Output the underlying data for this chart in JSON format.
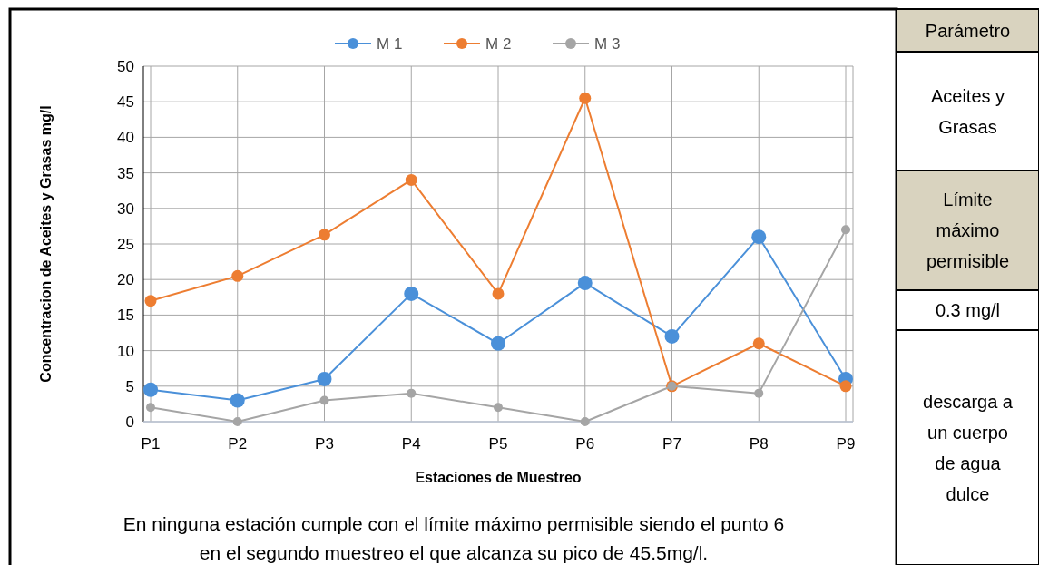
{
  "chart_data": {
    "type": "line",
    "xlabel": "Estaciones de Muestreo",
    "ylabel": "Concentracion de Aceites y Grasas mg/l",
    "categories": [
      "P1",
      "P2",
      "P3",
      "P4",
      "P5",
      "P6",
      "P7",
      "P8",
      "P9"
    ],
    "series": [
      {
        "name": "M 1",
        "color": "#4a90d9",
        "values": [
          4.5,
          3,
          6,
          18,
          11,
          19.5,
          12,
          26,
          6
        ]
      },
      {
        "name": "M 2",
        "color": "#ed7d31",
        "values": [
          17,
          20.5,
          26.3,
          34,
          18,
          45.5,
          5,
          11,
          5
        ]
      },
      {
        "name": "M 3",
        "color": "#a5a5a5",
        "values": [
          2,
          0,
          3,
          4,
          2,
          0,
          5,
          4,
          27
        ]
      }
    ],
    "ylim": [
      0,
      50
    ],
    "yticks": [
      0,
      5,
      10,
      15,
      20,
      25,
      30,
      35,
      40,
      45,
      50
    ],
    "grid": true,
    "legend": "top",
    "marker": "circle",
    "line_style": "solid",
    "annotations": [
      "En ninguna estación cumple con el límite máximo permisible siendo el punto 6 en el segundo muestreo el que alcanza su pico de 45.5mg/l.",
      "Parámetro",
      "Aceites y Grasas",
      "Límite máximo permisible",
      "0.3 mg/l",
      "descarga a un cuerpo de agua dulce"
    ]
  }
}
